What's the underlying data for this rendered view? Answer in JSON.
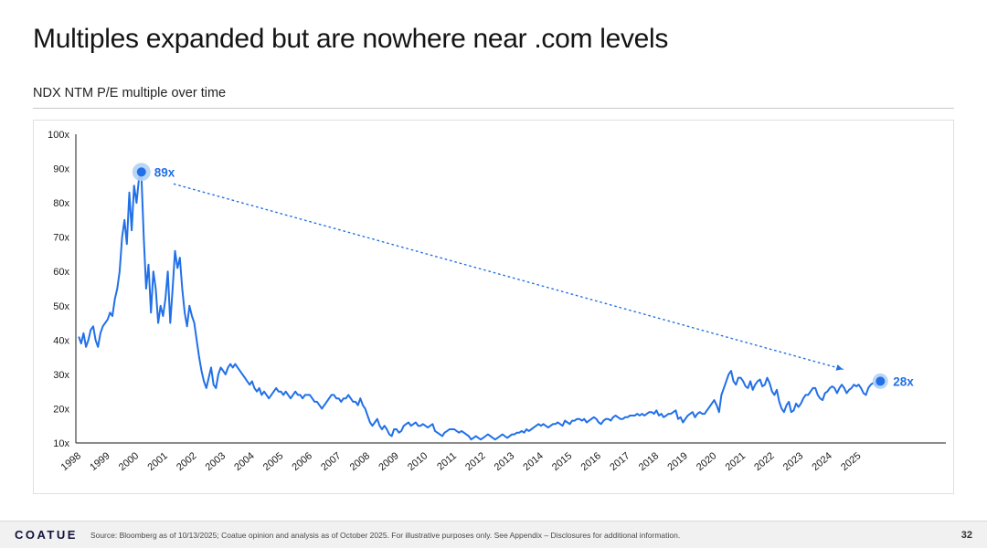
{
  "slide": {
    "title": "Multiples expanded but are nowhere near .com levels",
    "subtitle": "NDX NTM P/E multiple over time",
    "logo_text": "COATUE",
    "source_text": "Source: Bloomberg as of 10/13/2025; Coatue opinion and analysis as of October 2025. For illustrative purposes only. See Appendix – Disclosures for additional information.",
    "page_number": "32"
  },
  "colors": {
    "line": "#2170e8",
    "halo": "#b3d1f6",
    "axis": "#1a1a1a",
    "tick_text": "#1a1a1a"
  },
  "chart_data": {
    "type": "line",
    "title": "NDX NTM P/E multiple over time",
    "xlabel": "",
    "ylabel": "",
    "grid": false,
    "legend": "none",
    "x_start_year": 1998,
    "points_per_year": 12,
    "xlim": [
      1997.9,
      2026.5
    ],
    "ylim": [
      10,
      100
    ],
    "y_ticks": [
      10,
      20,
      30,
      40,
      50,
      60,
      70,
      80,
      90,
      100
    ],
    "y_tick_suffix": "x",
    "x_tick_years": [
      1998,
      1999,
      2000,
      2001,
      2002,
      2003,
      2004,
      2005,
      2006,
      2007,
      2008,
      2009,
      2010,
      2011,
      2012,
      2013,
      2014,
      2015,
      2016,
      2017,
      2018,
      2019,
      2020,
      2021,
      2022,
      2023,
      2024,
      2025
    ],
    "series_name": "NDX NTM P/E",
    "values": [
      41,
      39,
      42,
      38,
      40,
      43,
      44,
      40,
      38,
      42,
      44,
      45,
      46,
      48,
      47,
      52,
      55,
      60,
      70,
      75,
      68,
      83,
      72,
      85,
      80,
      87,
      89,
      70,
      55,
      62,
      48,
      60,
      55,
      45,
      50,
      47,
      52,
      60,
      45,
      55,
      66,
      61,
      64,
      55,
      48,
      44,
      50,
      47,
      45,
      40,
      35,
      31,
      28,
      26,
      29,
      32,
      27,
      26,
      30,
      32,
      31,
      30,
      32,
      33,
      32,
      33,
      32,
      31,
      30,
      29,
      28,
      27,
      28,
      26,
      25,
      26,
      24,
      25,
      24,
      23,
      24,
      25,
      26,
      25,
      25,
      24,
      25,
      24,
      23,
      24,
      25,
      24,
      24,
      23,
      24,
      24,
      24,
      23,
      22,
      22,
      21,
      20,
      21,
      22,
      23,
      24,
      24,
      23,
      23,
      22,
      23,
      23,
      24,
      23,
      22,
      22,
      21,
      23,
      21,
      20,
      18,
      16,
      15,
      16,
      17,
      15,
      14,
      15,
      14,
      12.5,
      12,
      14,
      14,
      13,
      13.5,
      15,
      15.5,
      16,
      15,
      15.5,
      16,
      15,
      15,
      15.5,
      15,
      14.5,
      15,
      15.5,
      13.5,
      13,
      12.5,
      12,
      13,
      13.5,
      14,
      14,
      14,
      13.5,
      13,
      13.5,
      13,
      12.5,
      12,
      11,
      11.5,
      12,
      11.5,
      11,
      11.5,
      12,
      12.5,
      12,
      11.5,
      11,
      11.5,
      12,
      12.5,
      12,
      11.5,
      12,
      12.5,
      12.5,
      13,
      13,
      13.5,
      13,
      14,
      13.5,
      14,
      14.5,
      15,
      15.5,
      15,
      15.5,
      15,
      14.5,
      15,
      15.5,
      15.5,
      16,
      15.5,
      15,
      16.5,
      16,
      15.5,
      16.5,
      16.5,
      17,
      17,
      16.5,
      17,
      16,
      16.5,
      17,
      17.5,
      17,
      16,
      15.5,
      16.5,
      17,
      17,
      16.5,
      17.5,
      18,
      17.5,
      17,
      17,
      17.5,
      17.5,
      18,
      18,
      18,
      18.5,
      18,
      18.5,
      18,
      18.5,
      19,
      19,
      18.5,
      19.5,
      18,
      18.5,
      17.5,
      18,
      18.5,
      18.5,
      19,
      19.5,
      17,
      17.5,
      16,
      17,
      18,
      18.5,
      19,
      17.5,
      18.5,
      19,
      18.5,
      18.5,
      19.5,
      20.5,
      21.5,
      22.5,
      21,
      19,
      24,
      26,
      28,
      30,
      31,
      28,
      27,
      29,
      29,
      28,
      26.5,
      26,
      28,
      25.5,
      27,
      28,
      28.5,
      26.5,
      27,
      29,
      27.5,
      25,
      24,
      25.5,
      22,
      20,
      19,
      21,
      22,
      19,
      19.5,
      21.5,
      20.5,
      21.5,
      23,
      24,
      24,
      25,
      26,
      26,
      24,
      23,
      22.5,
      24.5,
      25,
      26,
      26.5,
      26,
      24.5,
      26,
      27,
      26,
      24.5,
      25.5,
      26,
      27,
      26.5,
      27,
      26,
      24.5,
      24,
      26,
      27,
      27.5,
      27,
      26.5,
      28
    ],
    "annotations": {
      "peak": {
        "x": 2000.17,
        "y": 89,
        "label": "89x"
      },
      "end": {
        "x": 2025.75,
        "y": 28,
        "label": "28x"
      },
      "arrow": {
        "x1": 2001.3,
        "y1": 85.5,
        "x2": 2024.45,
        "y2": 31.5
      }
    }
  }
}
